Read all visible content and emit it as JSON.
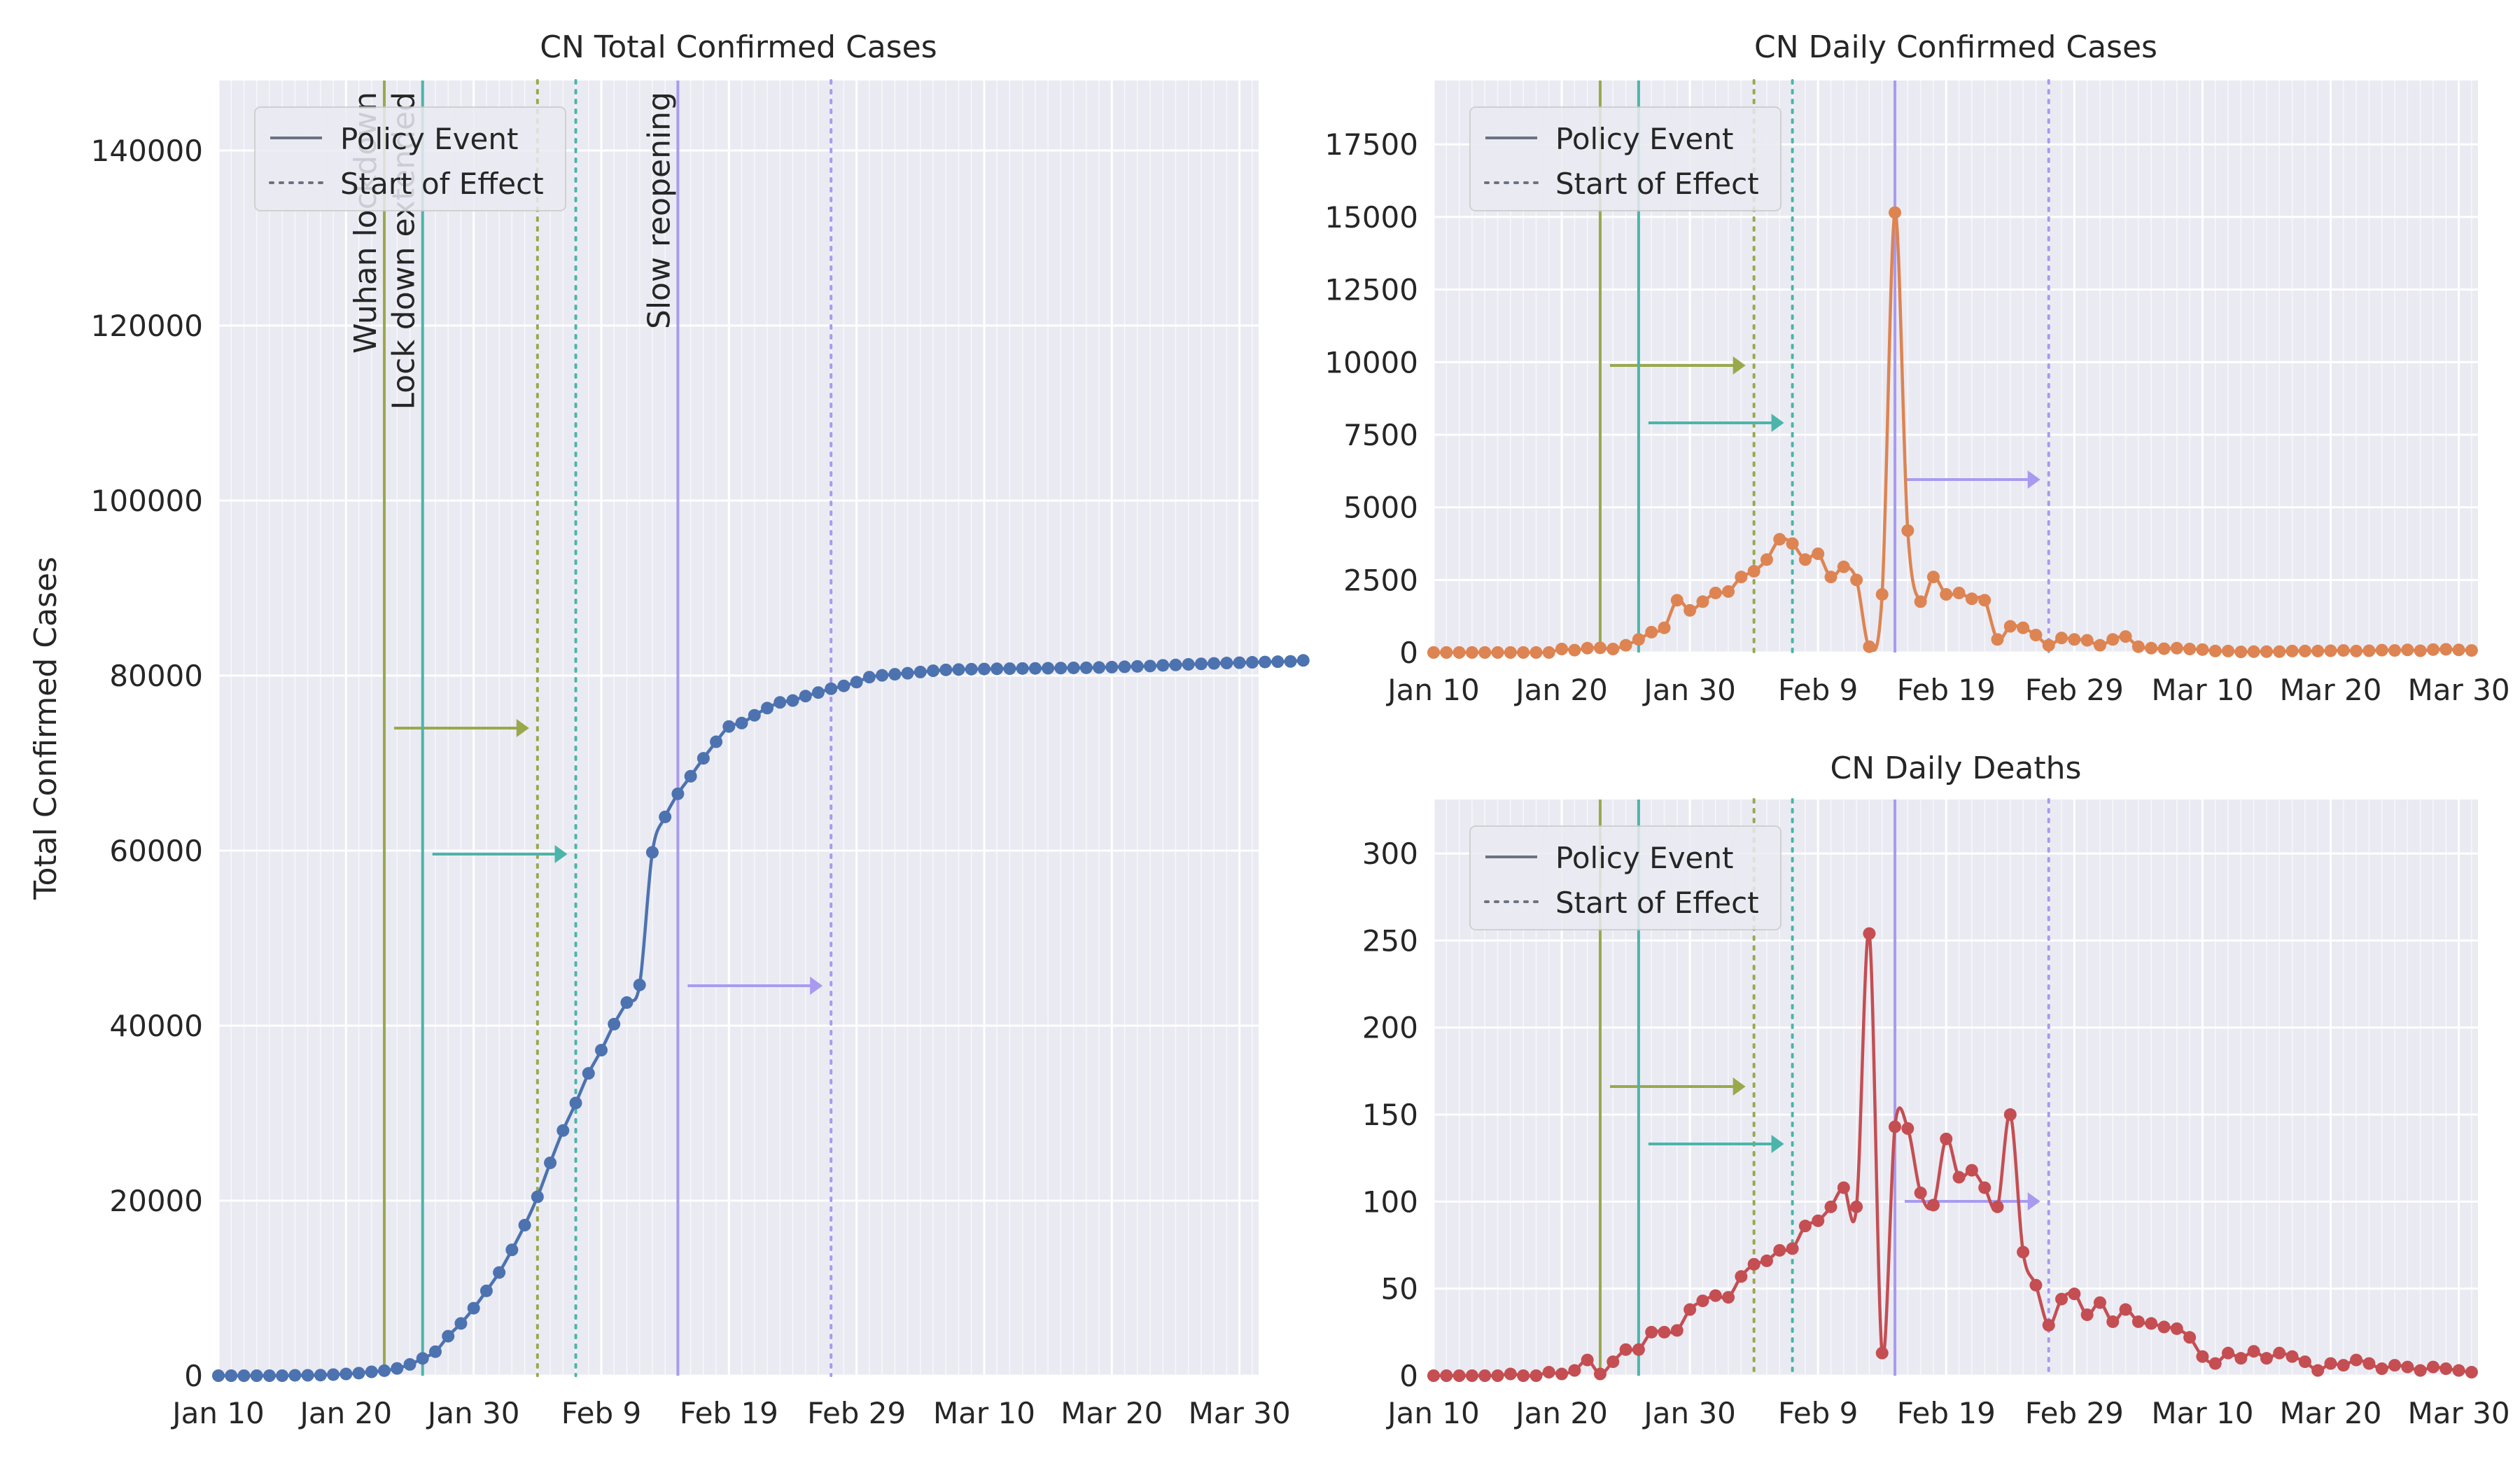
{
  "policy_colors": {
    "wuhan_lockdown": "#9aa84c",
    "lockdown_extended": "#4bb5aa",
    "slow_reopening": "#a99af0"
  },
  "colors": {
    "total": "#4c72b0",
    "daily_cases": "#dd8452",
    "daily_deaths": "#c44e52",
    "background": "#eaeaf2",
    "grid": "#ffffff"
  },
  "legend": {
    "policy_event": "Policy Event",
    "start_of_effect": "Start of Effect"
  },
  "policy_labels": {
    "wuhan_lockdown": "Wuhan lockdown",
    "lockdown_extended": "Lock down extended",
    "slow_reopening": "Slow reopening"
  },
  "x_axis": {
    "tick_labels": [
      "Jan 10",
      "Jan 20",
      "Jan 30",
      "Feb 9",
      "Feb 19",
      "Feb 29",
      "Mar 10",
      "Mar 20",
      "Mar 30"
    ],
    "tick_days": [
      0,
      10,
      20,
      30,
      40,
      50,
      60,
      70,
      80
    ]
  },
  "policy_events": [
    {
      "key": "wuhan_lockdown",
      "event_day": 13,
      "effect_day": 25
    },
    {
      "key": "lockdown_extended",
      "event_day": 16,
      "effect_day": 28
    },
    {
      "key": "slow_reopening",
      "event_day": 36,
      "effect_day": 48
    }
  ],
  "chart_data": [
    {
      "type": "line",
      "title": "CN Total Confirmed Cases",
      "xlabel": "",
      "ylabel": "Total Confirmed Cases",
      "x_start": "Jan 10",
      "ylim": [
        0,
        148000
      ],
      "y_ticks": [
        0,
        20000,
        40000,
        60000,
        80000,
        100000,
        120000,
        140000
      ],
      "series": [
        {
          "values": [
            0,
            0,
            0,
            0,
            0,
            0,
            41,
            45,
            62,
            121,
            198,
            291,
            440,
            571,
            830,
            1287,
            1975,
            2744,
            4515,
            5974,
            7711,
            9692,
            11791,
            14380,
            17205,
            20438,
            24324,
            28018,
            31161,
            34546,
            37198,
            40171,
            42638,
            44653,
            59804,
            63851,
            66492,
            68500,
            70548,
            72436,
            74185,
            74576,
            75465,
            76288,
            76936,
            77150,
            77658,
            78064,
            78497,
            78824,
            79251,
            79824,
            80026,
            80151,
            80270,
            80409,
            80552,
            80651,
            80695,
            80735,
            80754,
            80778,
            80793,
            80813,
            80824,
            80844,
            80860,
            80881,
            80894,
            80928,
            80967,
            81008,
            81054,
            81093,
            81171,
            81218,
            81285,
            81340,
            81394,
            81439,
            81470,
            81518,
            81554,
            81589,
            81620,
            81737
          ]
        }
      ]
    },
    {
      "type": "line",
      "title": "CN Daily Confirmed Cases",
      "xlabel": "",
      "ylabel": "",
      "x_start": "Jan 10",
      "ylim": [
        0,
        19700
      ],
      "y_ticks": [
        0,
        2500,
        5000,
        7500,
        10000,
        12500,
        15000,
        17500
      ],
      "series": [
        {
          "values": [
            0,
            0,
            0,
            0,
            0,
            0,
            0,
            0,
            0,
            0,
            120,
            80,
            150,
            160,
            120,
            250,
            450,
            700,
            850,
            1800,
            1450,
            1750,
            2050,
            2100,
            2600,
            2800,
            3200,
            3900,
            3750,
            3200,
            3400,
            2600,
            2950,
            2500,
            200,
            2000,
            15150,
            4200,
            1750,
            2600,
            2000,
            2050,
            1850,
            1800,
            450,
            900,
            850,
            600,
            250,
            500,
            450,
            420,
            250,
            450,
            550,
            200,
            150,
            130,
            150,
            120,
            100,
            50,
            50,
            20,
            30,
            30,
            30,
            50,
            50,
            50,
            60,
            70,
            50,
            60,
            80,
            70,
            90,
            60,
            100,
            110,
            90,
            70
          ]
        }
      ]
    },
    {
      "type": "line",
      "title": "CN Daily Deaths",
      "xlabel": "",
      "ylabel": "",
      "x_start": "Jan 10",
      "ylim": [
        0,
        331
      ],
      "y_ticks": [
        0,
        50,
        100,
        150,
        200,
        250,
        300
      ],
      "series": [
        {
          "values": [
            0,
            0,
            0,
            0,
            0,
            0,
            1,
            0,
            0,
            2,
            1,
            3,
            9,
            1,
            8,
            15,
            15,
            25,
            25,
            26,
            38,
            43,
            46,
            45,
            57,
            64,
            66,
            72,
            73,
            86,
            89,
            97,
            108,
            97,
            254,
            13,
            143,
            142,
            105,
            98,
            136,
            114,
            118,
            108,
            97,
            150,
            71,
            52,
            29,
            44,
            47,
            35,
            42,
            31,
            38,
            31,
            30,
            28,
            27,
            22,
            11,
            7,
            13,
            10,
            14,
            10,
            13,
            11,
            8,
            3,
            7,
            6,
            9,
            7,
            4,
            6,
            5,
            3,
            5,
            4,
            3,
            2
          ]
        }
      ]
    }
  ]
}
